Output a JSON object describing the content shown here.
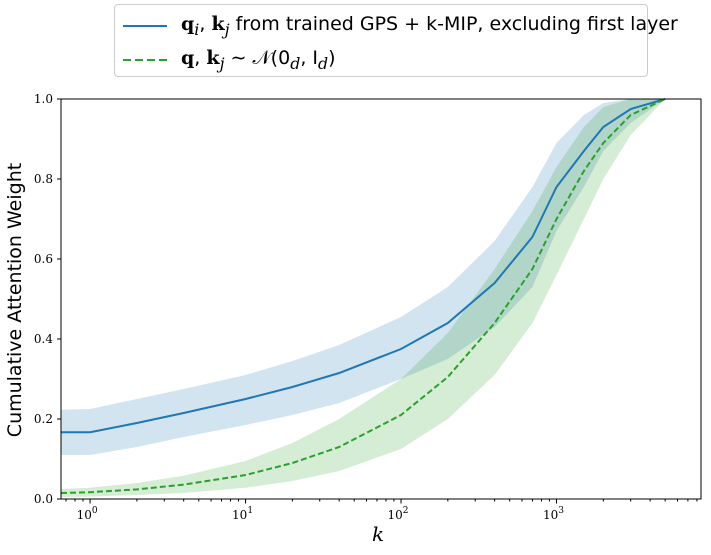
{
  "chart_data": {
    "type": "line",
    "xscale": "log",
    "xlabel": "k",
    "ylabel": "Cumulative Attention Weight",
    "xlim": [
      0.65,
      8500
    ],
    "ylim": [
      0.0,
      1.0
    ],
    "xticks": [
      {
        "value": 1,
        "label": "10",
        "exp": "0"
      },
      {
        "value": 10,
        "label": "10",
        "exp": "1"
      },
      {
        "value": 100,
        "label": "10",
        "exp": "2"
      },
      {
        "value": 1000,
        "label": "10",
        "exp": "3"
      }
    ],
    "yticks": [
      {
        "value": 0.0,
        "label": "0.0"
      },
      {
        "value": 0.2,
        "label": "0.2"
      },
      {
        "value": 0.4,
        "label": "0.4"
      },
      {
        "value": 0.6,
        "label": "0.6"
      },
      {
        "value": 0.8,
        "label": "0.8"
      },
      {
        "value": 1.0,
        "label": "1.0"
      }
    ],
    "series": [
      {
        "name": "q_i, k_j from trained GPS + k-MIP, excluding first layer",
        "color": "#1f77b4",
        "band_color": "#1f77b4",
        "style": "solid",
        "x": [
          0.65,
          1,
          2,
          4,
          10,
          20,
          40,
          100,
          200,
          400,
          700,
          1000,
          1500,
          2000,
          3000,
          5000
        ],
        "y": [
          0.167,
          0.167,
          0.19,
          0.215,
          0.25,
          0.28,
          0.315,
          0.375,
          0.44,
          0.54,
          0.655,
          0.78,
          0.87,
          0.93,
          0.975,
          1.0
        ],
        "lower": [
          0.11,
          0.11,
          0.13,
          0.155,
          0.185,
          0.21,
          0.24,
          0.3,
          0.35,
          0.43,
          0.53,
          0.67,
          0.78,
          0.87,
          0.94,
          1.0
        ],
        "upper": [
          0.223,
          0.225,
          0.25,
          0.275,
          0.31,
          0.345,
          0.385,
          0.455,
          0.53,
          0.645,
          0.78,
          0.89,
          0.96,
          0.99,
          1.0,
          1.0
        ]
      },
      {
        "name": "q, k_j ~ N(0_d, I_d)",
        "color": "#2ca02c",
        "band_color": "#2ca02c",
        "style": "dashed",
        "x": [
          0.65,
          1,
          2,
          4,
          10,
          20,
          40,
          100,
          200,
          400,
          700,
          1000,
          1500,
          2000,
          3000,
          5000
        ],
        "y": [
          0.015,
          0.017,
          0.024,
          0.036,
          0.06,
          0.09,
          0.13,
          0.21,
          0.305,
          0.44,
          0.575,
          0.7,
          0.82,
          0.89,
          0.96,
          1.0
        ],
        "lower": [
          0.005,
          0.006,
          0.01,
          0.015,
          0.028,
          0.045,
          0.07,
          0.125,
          0.2,
          0.31,
          0.44,
          0.56,
          0.7,
          0.8,
          0.91,
          1.0
        ],
        "upper": [
          0.025,
          0.028,
          0.04,
          0.058,
          0.095,
          0.14,
          0.2,
          0.3,
          0.415,
          0.575,
          0.72,
          0.83,
          0.93,
          0.98,
          1.0,
          1.0
        ]
      }
    ],
    "legend": {
      "position": "top-center",
      "entries": [
        {
          "math_vars": "q",
          "math_sub": "i",
          "sep": ", ",
          "math_vars2": "k",
          "math_sub2": "j",
          "text": " from trained GPS + k-MIP, excluding first layer"
        },
        {
          "math_vars": "q",
          "math_sub": "",
          "sep": ", ",
          "math_vars2": "k",
          "math_sub2": "j",
          "text": " ∼ 𝒩(0",
          "sub_d": "d",
          "text2": ", I",
          "sub_d2": "d",
          "text3": ")"
        }
      ]
    }
  }
}
